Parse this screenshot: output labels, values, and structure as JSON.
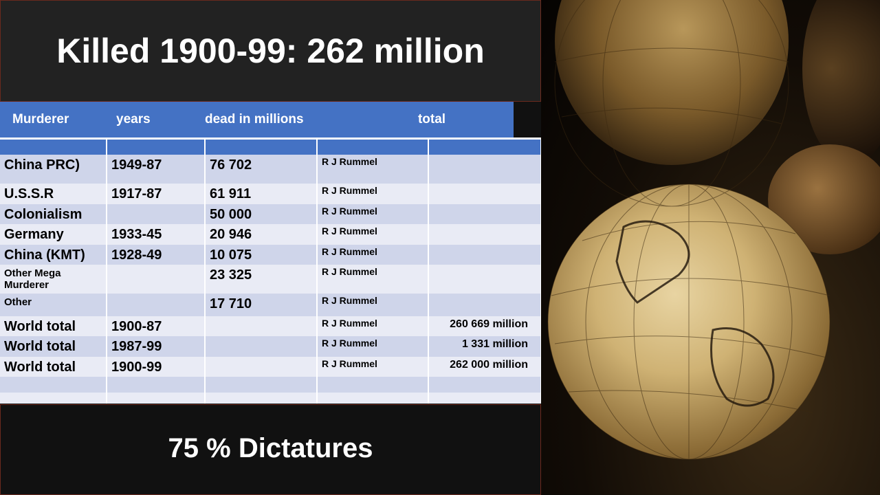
{
  "slide": {
    "title": "Killed 1900-99: 262 million",
    "footer": "75 % Dictatures"
  },
  "table": {
    "headers": [
      "Murderer",
      "years",
      "dead in millions",
      "",
      "total"
    ],
    "rows": [
      {
        "murderer": "China PRC)",
        "years": "1949-87",
        "dead": "76 702",
        "source": "R J Rummel",
        "total": ""
      },
      {
        "murderer": "U.S.S.R",
        "years": "1917-87",
        "dead": "61 911",
        "source": "R J Rummel",
        "total": ""
      },
      {
        "murderer": "Colonialism",
        "years": "",
        "dead": "50 000",
        "source": "R J Rummel",
        "total": ""
      },
      {
        "murderer": "Germany",
        "years": "1933-45",
        "dead": "20 946",
        "source": "R J Rummel",
        "total": ""
      },
      {
        "murderer": "China (KMT)",
        "years": "1928-49",
        "dead": "10 075",
        "source": "R J Rummel",
        "total": ""
      },
      {
        "murderer": "Other Mega Murderer",
        "years": "",
        "dead": "23 325",
        "source": "R J Rummel",
        "total": ""
      },
      {
        "murderer": "Other",
        "years": "",
        "dead": "17 710",
        "source": "R J Rummel",
        "total": ""
      },
      {
        "murderer": "World total",
        "years": "1900-87",
        "dead": "",
        "source": "R J Rummel",
        "total": "260 669 million"
      },
      {
        "murderer": "World total",
        "years": "1987-99",
        "dead": "",
        "source": "R J Rummel",
        "total": "1 331 million"
      },
      {
        "murderer": "World total",
        "years": "1900-99",
        "dead": "",
        "source": "R J Rummel",
        "total": "262 000 million"
      }
    ]
  },
  "colors": {
    "header": "#4472c4",
    "row_odd": "#cfd5ea",
    "row_even": "#e9ebf5",
    "panel": "#222222"
  },
  "image": {
    "subject": "antique-globes-photo"
  }
}
